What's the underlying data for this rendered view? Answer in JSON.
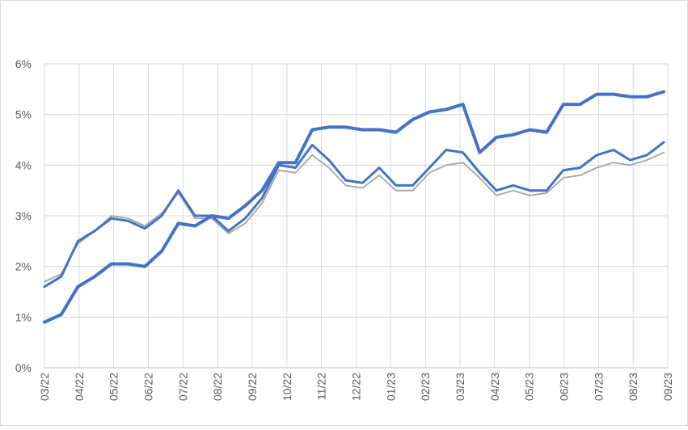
{
  "chart_data": {
    "type": "line",
    "title": "",
    "xlabel": "",
    "ylabel": "",
    "ylim": [
      0,
      6
    ],
    "grid": true,
    "legend": "none",
    "x_tick_labels": [
      "03/22",
      "04/22",
      "05/22",
      "06/22",
      "07/22",
      "08/22",
      "09/22",
      "10/22",
      "11/22",
      "12/22",
      "01/23",
      "02/23",
      "03/23",
      "04/23",
      "05/23",
      "06/23",
      "07/23",
      "08/23",
      "09/23"
    ],
    "y_tick_labels": [
      "0%",
      "1%",
      "2%",
      "3%",
      "4%",
      "5%",
      "6%"
    ],
    "colors": {
      "blue": "#4472C4",
      "gray": "#A5A5A5"
    },
    "series": [
      {
        "color": "#4472C4",
        "width": "thick",
        "x": [
          "03/22",
          "03/22",
          "04/22",
          "04/22",
          "05/22",
          "05/22",
          "06/22",
          "06/22",
          "07/22",
          "07/22",
          "08/22",
          "08/22",
          "09/22",
          "09/22",
          "10/22",
          "10/22",
          "11/22",
          "11/22",
          "12/22",
          "12/22",
          "01/23",
          "01/23",
          "02/23",
          "02/23",
          "03/23",
          "03/23",
          "03/23",
          "04/23",
          "04/23",
          "05/23",
          "05/23",
          "06/23",
          "06/23",
          "07/23",
          "07/23",
          "08/23",
          "08/23",
          "09/23"
        ],
        "values": [
          0.9,
          1.05,
          1.6,
          1.8,
          2.05,
          2.05,
          2.0,
          2.3,
          2.85,
          2.8,
          3.0,
          2.95,
          3.2,
          3.5,
          4.05,
          4.05,
          4.7,
          4.75,
          4.75,
          4.7,
          4.7,
          4.65,
          4.9,
          5.05,
          5.1,
          5.2,
          4.25,
          4.55,
          4.6,
          4.7,
          4.65,
          5.2,
          5.2,
          5.4,
          5.4,
          5.35,
          5.35,
          5.45
        ]
      },
      {
        "color": "#4472C4",
        "width": "medium",
        "x": [
          "03/22",
          "03/22",
          "04/22",
          "04/22",
          "05/22",
          "05/22",
          "06/22",
          "06/22",
          "07/22",
          "07/22",
          "08/22",
          "08/22",
          "09/22",
          "09/22",
          "10/22",
          "10/22",
          "11/22",
          "11/22",
          "12/22",
          "12/22",
          "01/23",
          "01/23",
          "02/23",
          "02/23",
          "03/23",
          "03/23",
          "03/23",
          "04/23",
          "04/23",
          "05/23",
          "05/23",
          "06/23",
          "06/23",
          "07/23",
          "07/23",
          "08/23",
          "08/23",
          "09/23"
        ],
        "values": [
          1.6,
          1.8,
          2.5,
          2.7,
          2.95,
          2.9,
          2.75,
          3.0,
          3.5,
          3.0,
          3.0,
          2.7,
          2.95,
          3.35,
          4.0,
          3.95,
          4.4,
          4.1,
          3.7,
          3.65,
          3.95,
          3.6,
          3.6,
          3.95,
          4.3,
          4.25,
          3.85,
          3.5,
          3.6,
          3.5,
          3.5,
          3.9,
          3.95,
          4.2,
          4.3,
          4.1,
          4.2,
          4.45
        ]
      },
      {
        "color": "#A5A5A5",
        "width": "thin",
        "x": [
          "03/22",
          "03/22",
          "04/22",
          "04/22",
          "05/22",
          "05/22",
          "06/22",
          "06/22",
          "07/22",
          "07/22",
          "08/22",
          "08/22",
          "09/22",
          "09/22",
          "10/22",
          "10/22",
          "11/22",
          "11/22",
          "12/22",
          "12/22",
          "01/23",
          "01/23",
          "02/23",
          "02/23",
          "03/23",
          "03/23",
          "03/23",
          "04/23",
          "04/23",
          "05/23",
          "05/23",
          "06/23",
          "06/23",
          "07/23",
          "07/23",
          "08/23",
          "08/23",
          "09/23"
        ],
        "values": [
          1.7,
          1.85,
          2.45,
          2.7,
          3.0,
          2.95,
          2.8,
          3.05,
          3.45,
          2.95,
          2.95,
          2.65,
          2.85,
          3.25,
          3.9,
          3.85,
          4.2,
          3.95,
          3.6,
          3.55,
          3.8,
          3.5,
          3.5,
          3.85,
          4.0,
          4.05,
          3.75,
          3.4,
          3.5,
          3.4,
          3.45,
          3.75,
          3.8,
          3.95,
          4.05,
          4.0,
          4.1,
          4.25
        ]
      }
    ]
  }
}
